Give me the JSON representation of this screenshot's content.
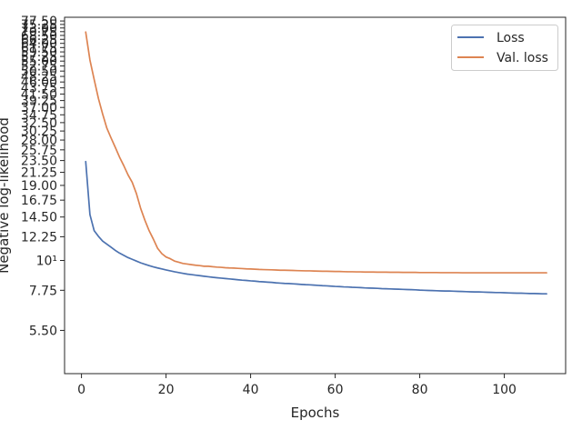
{
  "chart_data": {
    "type": "line",
    "title": "",
    "xlabel": "Epochs",
    "ylabel": "Negative log-likelihood",
    "yscale": "log",
    "xlim": [
      -4,
      114.5
    ],
    "ylim": [
      3.8,
      80
    ],
    "xticks": [
      0,
      20,
      40,
      60,
      80,
      100
    ],
    "yticks": [
      {
        "value": 5.5,
        "label": "5.50"
      },
      {
        "value": 7.75,
        "label": "7.75"
      },
      {
        "value": 10,
        "label": "10¹"
      },
      {
        "value": 12.25,
        "label": "12.25"
      },
      {
        "value": 14.5,
        "label": "14.50"
      },
      {
        "value": 16.75,
        "label": "16.75"
      },
      {
        "value": 19.0,
        "label": "19.00"
      },
      {
        "value": 21.25,
        "label": "21.25"
      },
      {
        "value": 23.5,
        "label": "23.50"
      },
      {
        "value": 25.75,
        "label": "25.75"
      },
      {
        "value": 28.0,
        "label": "28.00"
      },
      {
        "value": 30.25,
        "label": "30.25"
      },
      {
        "value": 32.5,
        "label": "32.50"
      },
      {
        "value": 34.75,
        "label": "34.75"
      },
      {
        "value": 37.0,
        "label": "37.00"
      },
      {
        "value": 39.25,
        "label": "39.25"
      },
      {
        "value": 41.5,
        "label": "41.50"
      },
      {
        "value": 43.75,
        "label": "43.75"
      },
      {
        "value": 46.0,
        "label": "46.00"
      },
      {
        "value": 48.25,
        "label": "48.25"
      },
      {
        "value": 50.5,
        "label": "50.50"
      },
      {
        "value": 52.75,
        "label": "52.75"
      },
      {
        "value": 55.0,
        "label": "55.00"
      },
      {
        "value": 57.25,
        "label": "57.25"
      },
      {
        "value": 59.5,
        "label": "59.50"
      },
      {
        "value": 61.75,
        "label": "61.75"
      },
      {
        "value": 64.0,
        "label": "64.00"
      },
      {
        "value": 66.25,
        "label": "66.25"
      },
      {
        "value": 68.5,
        "label": "68.50"
      },
      {
        "value": 70.75,
        "label": "70.75"
      },
      {
        "value": 73.0,
        "label": "73.00"
      },
      {
        "value": 75.25,
        "label": "75.25"
      },
      {
        "value": 77.5,
        "label": "77.50"
      }
    ],
    "grid": false,
    "legend": "top-right",
    "series": [
      {
        "name": "Loss",
        "color": "#4c72b0",
        "points": [
          [
            1,
            23.3
          ],
          [
            2,
            14.8
          ],
          [
            3,
            12.9
          ],
          [
            4,
            12.3
          ],
          [
            5,
            11.8
          ],
          [
            6,
            11.5
          ],
          [
            7,
            11.2
          ],
          [
            8,
            10.9
          ],
          [
            9,
            10.65
          ],
          [
            10,
            10.45
          ],
          [
            11,
            10.25
          ],
          [
            12,
            10.1
          ],
          [
            13,
            9.95
          ],
          [
            14,
            9.8
          ],
          [
            15,
            9.68
          ],
          [
            16,
            9.57
          ],
          [
            17,
            9.47
          ],
          [
            18,
            9.38
          ],
          [
            19,
            9.3
          ],
          [
            20,
            9.22
          ],
          [
            21,
            9.15
          ],
          [
            22,
            9.08
          ],
          [
            23,
            9.02
          ],
          [
            24,
            8.96
          ],
          [
            25,
            8.9
          ],
          [
            26,
            8.86
          ],
          [
            27,
            8.82
          ],
          [
            28,
            8.78
          ],
          [
            29,
            8.74
          ],
          [
            30,
            8.7
          ],
          [
            31,
            8.66
          ],
          [
            32,
            8.63
          ],
          [
            33,
            8.6
          ],
          [
            34,
            8.57
          ],
          [
            35,
            8.54
          ],
          [
            36,
            8.51
          ],
          [
            37,
            8.48
          ],
          [
            38,
            8.45
          ],
          [
            39,
            8.43
          ],
          [
            40,
            8.4
          ],
          [
            41,
            8.38
          ],
          [
            42,
            8.35
          ],
          [
            43,
            8.33
          ],
          [
            44,
            8.31
          ],
          [
            45,
            8.29
          ],
          [
            46,
            8.26
          ],
          [
            47,
            8.24
          ],
          [
            48,
            8.22
          ],
          [
            49,
            8.21
          ],
          [
            50,
            8.19
          ],
          [
            51,
            8.17
          ],
          [
            52,
            8.15
          ],
          [
            53,
            8.13
          ],
          [
            54,
            8.12
          ],
          [
            55,
            8.1
          ],
          [
            56,
            8.08
          ],
          [
            57,
            8.06
          ],
          [
            58,
            8.05
          ],
          [
            59,
            8.03
          ],
          [
            60,
            8.01
          ],
          [
            61,
            8.0
          ],
          [
            62,
            7.98
          ],
          [
            63,
            7.97
          ],
          [
            64,
            7.95
          ],
          [
            65,
            7.94
          ],
          [
            66,
            7.93
          ],
          [
            67,
            7.91
          ],
          [
            68,
            7.9
          ],
          [
            69,
            7.89
          ],
          [
            70,
            7.88
          ],
          [
            71,
            7.86
          ],
          [
            72,
            7.85
          ],
          [
            73,
            7.84
          ],
          [
            74,
            7.83
          ],
          [
            75,
            7.82
          ],
          [
            76,
            7.81
          ],
          [
            77,
            7.8
          ],
          [
            78,
            7.79
          ],
          [
            79,
            7.78
          ],
          [
            80,
            7.76
          ],
          [
            81,
            7.75
          ],
          [
            82,
            7.74
          ],
          [
            83,
            7.73
          ],
          [
            84,
            7.72
          ],
          [
            85,
            7.71
          ],
          [
            86,
            7.7
          ],
          [
            87,
            7.7
          ],
          [
            88,
            7.69
          ],
          [
            89,
            7.68
          ],
          [
            90,
            7.67
          ],
          [
            91,
            7.66
          ],
          [
            92,
            7.65
          ],
          [
            93,
            7.64
          ],
          [
            94,
            7.64
          ],
          [
            95,
            7.63
          ],
          [
            96,
            7.62
          ],
          [
            97,
            7.61
          ],
          [
            98,
            7.6
          ],
          [
            99,
            7.6
          ],
          [
            100,
            7.59
          ],
          [
            101,
            7.58
          ],
          [
            102,
            7.57
          ],
          [
            103,
            7.56
          ],
          [
            104,
            7.56
          ],
          [
            105,
            7.55
          ],
          [
            106,
            7.54
          ],
          [
            107,
            7.54
          ],
          [
            108,
            7.53
          ],
          [
            109,
            7.52
          ],
          [
            110,
            7.52
          ]
        ]
      },
      {
        "name": "Val. loss",
        "color": "#dd8452",
        "points": [
          [
            1,
            70.5
          ],
          [
            2,
            55.5
          ],
          [
            3,
            47.0
          ],
          [
            4,
            40.0
          ],
          [
            5,
            35.0
          ],
          [
            6,
            31.0
          ],
          [
            7,
            28.5
          ],
          [
            8,
            26.3
          ],
          [
            9,
            24.2
          ],
          [
            10,
            22.5
          ],
          [
            11,
            20.8
          ],
          [
            12,
            19.5
          ],
          [
            13,
            17.7
          ],
          [
            14,
            15.6
          ],
          [
            15,
            14.1
          ],
          [
            16,
            12.9
          ],
          [
            17,
            12.0
          ],
          [
            18,
            11.1
          ],
          [
            19,
            10.6
          ],
          [
            20,
            10.3
          ],
          [
            21,
            10.15
          ],
          [
            22,
            9.95
          ],
          [
            23,
            9.85
          ],
          [
            24,
            9.75
          ],
          [
            25,
            9.7
          ],
          [
            26,
            9.65
          ],
          [
            27,
            9.6
          ],
          [
            28,
            9.57
          ],
          [
            29,
            9.52
          ],
          [
            30,
            9.52
          ],
          [
            31,
            9.48
          ],
          [
            32,
            9.45
          ],
          [
            33,
            9.43
          ],
          [
            34,
            9.4
          ],
          [
            35,
            9.38
          ],
          [
            36,
            9.37
          ],
          [
            37,
            9.35
          ],
          [
            38,
            9.33
          ],
          [
            39,
            9.31
          ],
          [
            40,
            9.3
          ],
          [
            41,
            9.28
          ],
          [
            42,
            9.26
          ],
          [
            43,
            9.25
          ],
          [
            44,
            9.24
          ],
          [
            45,
            9.23
          ],
          [
            46,
            9.22
          ],
          [
            47,
            9.2
          ],
          [
            48,
            9.2
          ],
          [
            49,
            9.19
          ],
          [
            50,
            9.18
          ],
          [
            51,
            9.17
          ],
          [
            52,
            9.16
          ],
          [
            53,
            9.15
          ],
          [
            54,
            9.15
          ],
          [
            55,
            9.14
          ],
          [
            56,
            9.13
          ],
          [
            57,
            9.12
          ],
          [
            58,
            9.12
          ],
          [
            59,
            9.11
          ],
          [
            60,
            9.1
          ],
          [
            61,
            9.1
          ],
          [
            62,
            9.09
          ],
          [
            63,
            9.08
          ],
          [
            64,
            9.08
          ],
          [
            65,
            9.07
          ],
          [
            66,
            9.07
          ],
          [
            67,
            9.06
          ],
          [
            68,
            9.06
          ],
          [
            69,
            9.06
          ],
          [
            70,
            9.05
          ],
          [
            71,
            9.05
          ],
          [
            72,
            9.05
          ],
          [
            73,
            9.04
          ],
          [
            74,
            9.04
          ],
          [
            75,
            9.04
          ],
          [
            76,
            9.03
          ],
          [
            77,
            9.03
          ],
          [
            78,
            9.03
          ],
          [
            79,
            9.03
          ],
          [
            80,
            9.02
          ],
          [
            81,
            9.02
          ],
          [
            82,
            9.02
          ],
          [
            83,
            9.02
          ],
          [
            84,
            9.02
          ],
          [
            85,
            9.01
          ],
          [
            86,
            9.01
          ],
          [
            87,
            9.01
          ],
          [
            88,
            9.01
          ],
          [
            89,
            9.01
          ],
          [
            90,
            9.0
          ],
          [
            91,
            9.0
          ],
          [
            92,
            9.0
          ],
          [
            93,
            9.0
          ],
          [
            94,
            9.0
          ],
          [
            95,
            9.0
          ],
          [
            96,
            9.0
          ],
          [
            97,
            9.0
          ],
          [
            98,
            9.0
          ],
          [
            99,
            9.0
          ],
          [
            100,
            9.0
          ],
          [
            101,
            9.0
          ],
          [
            102,
            9.0
          ],
          [
            103,
            9.0
          ],
          [
            104,
            9.0
          ],
          [
            105,
            9.0
          ],
          [
            106,
            9.0
          ],
          [
            107,
            9.0
          ],
          [
            108,
            9.0
          ],
          [
            109,
            9.0
          ],
          [
            110,
            9.0
          ]
        ]
      }
    ]
  }
}
